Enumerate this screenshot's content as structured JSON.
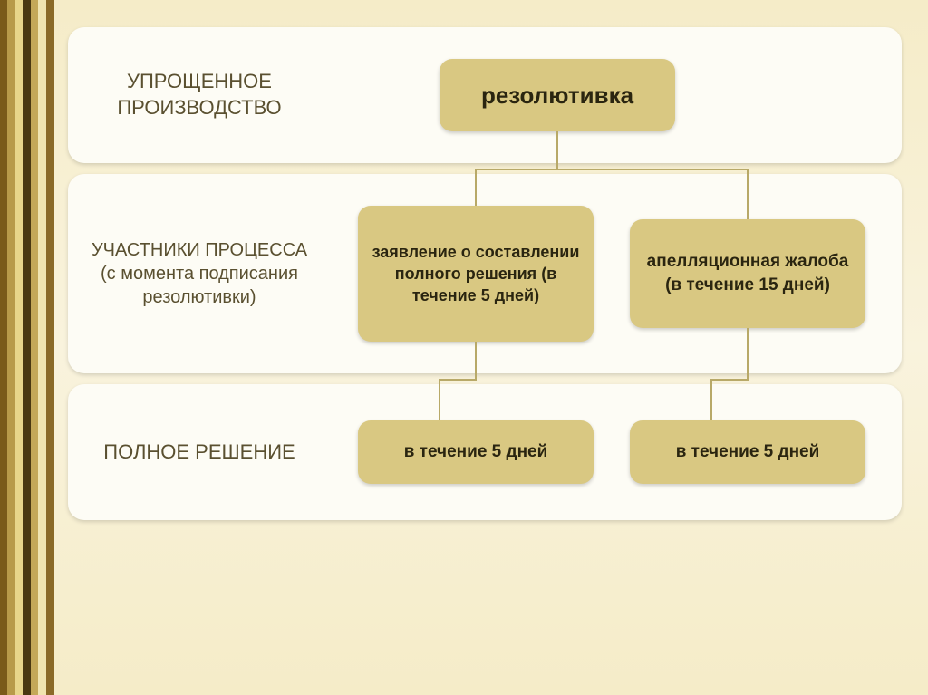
{
  "stripes": {
    "colors": [
      "#7a5a1a",
      "#b89a4a",
      "#e8d58a",
      "#4a3810",
      "#c4a858",
      "#f0e4b0",
      "#8a6a28"
    ],
    "widths": [
      8,
      9,
      8,
      9,
      8,
      9,
      9
    ]
  },
  "rows": {
    "row1": {
      "label": "УПРОЩЕННОЕ ПРОИЗВОДСТВО"
    },
    "row2": {
      "label": "УЧАСТНИКИ ПРОЦЕССА (с момента подписания резолютивки)"
    },
    "row3": {
      "label": "ПОЛНОЕ РЕШЕНИЕ"
    }
  },
  "nodes": {
    "root": {
      "text": "резолютивка",
      "fontsize": 26
    },
    "childL": {
      "text": "заявление о составлении полного решения (в течение 5 дней)",
      "fontsize": 18
    },
    "childR": {
      "text": "апелляционная жалоба (в течение 15 дней)",
      "fontsize": 19
    },
    "leafL": {
      "text": "в течение 5 дней",
      "fontsize": 19
    },
    "leafR": {
      "text": "в течение 5 дней",
      "fontsize": 19
    }
  },
  "style": {
    "row_bg": "#fdfcf5",
    "node_bg": "#d9c882",
    "label_color": "#5a5030",
    "node_text_color": "#2a2510",
    "connector_color": "#b8a968",
    "connector_width": 2
  }
}
